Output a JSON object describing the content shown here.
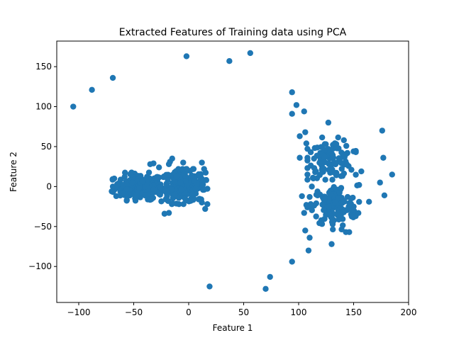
{
  "chart_data": {
    "type": "scatter",
    "title": "Extracted Features of Training data using PCA",
    "xlabel": "Feature 1",
    "ylabel": "Feature 2",
    "xlim": [
      -120,
      200
    ],
    "ylim": [
      -145,
      182
    ],
    "xticks": [
      -100,
      -50,
      0,
      50,
      100,
      150,
      200
    ],
    "yticks": [
      -100,
      -50,
      0,
      50,
      100,
      150
    ],
    "grid": false,
    "marker_color": "#1f77b4",
    "clusters": [
      {
        "center": [
          -45,
          0
        ],
        "spread": [
          11,
          8
        ],
        "count": 200
      },
      {
        "center": [
          -5,
          0
        ],
        "spread": [
          10,
          10
        ],
        "count": 240
      },
      {
        "center": [
          130,
          35
        ],
        "spread": [
          10,
          12
        ],
        "count": 110
      },
      {
        "center": [
          133,
          -25
        ],
        "spread": [
          10,
          13
        ],
        "count": 140
      }
    ],
    "points": [
      [
        -105,
        100
      ],
      [
        -88,
        121
      ],
      [
        -69,
        136
      ],
      [
        -2,
        163
      ],
      [
        37,
        157
      ],
      [
        56,
        167
      ],
      [
        94,
        118
      ],
      [
        98,
        102
      ],
      [
        94,
        91
      ],
      [
        105,
        94
      ],
      [
        19,
        -125
      ],
      [
        70,
        -128
      ],
      [
        74,
        -113
      ],
      [
        94,
        -94
      ],
      [
        109,
        -80
      ],
      [
        110,
        -64
      ],
      [
        106,
        -55
      ],
      [
        127,
        80
      ],
      [
        176,
        70
      ],
      [
        177,
        36
      ],
      [
        174,
        5
      ],
      [
        178,
        -11
      ],
      [
        185,
        15
      ],
      [
        164,
        -19
      ],
      [
        155,
        2
      ],
      [
        150,
        44
      ],
      [
        157,
        19
      ],
      [
        148,
        21
      ],
      [
        101,
        36
      ],
      [
        101,
        63
      ],
      [
        106,
        68
      ],
      [
        107,
        54
      ],
      [
        111,
        43
      ],
      [
        114,
        35
      ],
      [
        108,
        15
      ],
      [
        113,
        11
      ],
      [
        112,
        0
      ],
      [
        115,
        18
      ],
      [
        103,
        -12
      ],
      [
        107,
        -23
      ],
      [
        110,
        -13
      ],
      [
        116,
        -21
      ],
      [
        105,
        -33
      ],
      [
        108,
        -26
      ],
      [
        130,
        -72
      ],
      [
        143,
        -57
      ],
      [
        146,
        -57
      ],
      [
        -70,
        -6
      ],
      [
        -65,
        3
      ],
      [
        -66,
        -1
      ],
      [
        -69,
        0
      ],
      [
        -22,
        -34
      ],
      [
        -18,
        -33
      ],
      [
        -34,
        -16
      ],
      [
        -32,
        29
      ],
      [
        -27,
        24
      ],
      [
        -35,
        28
      ],
      [
        -18,
        28
      ],
      [
        -17,
        31
      ],
      [
        -15,
        35
      ],
      [
        -5,
        30
      ],
      [
        12,
        30
      ],
      [
        14,
        22
      ],
      [
        16,
        8
      ],
      [
        14,
        -4
      ],
      [
        12,
        -20
      ],
      [
        9,
        -16
      ],
      [
        15,
        -28
      ]
    ]
  }
}
